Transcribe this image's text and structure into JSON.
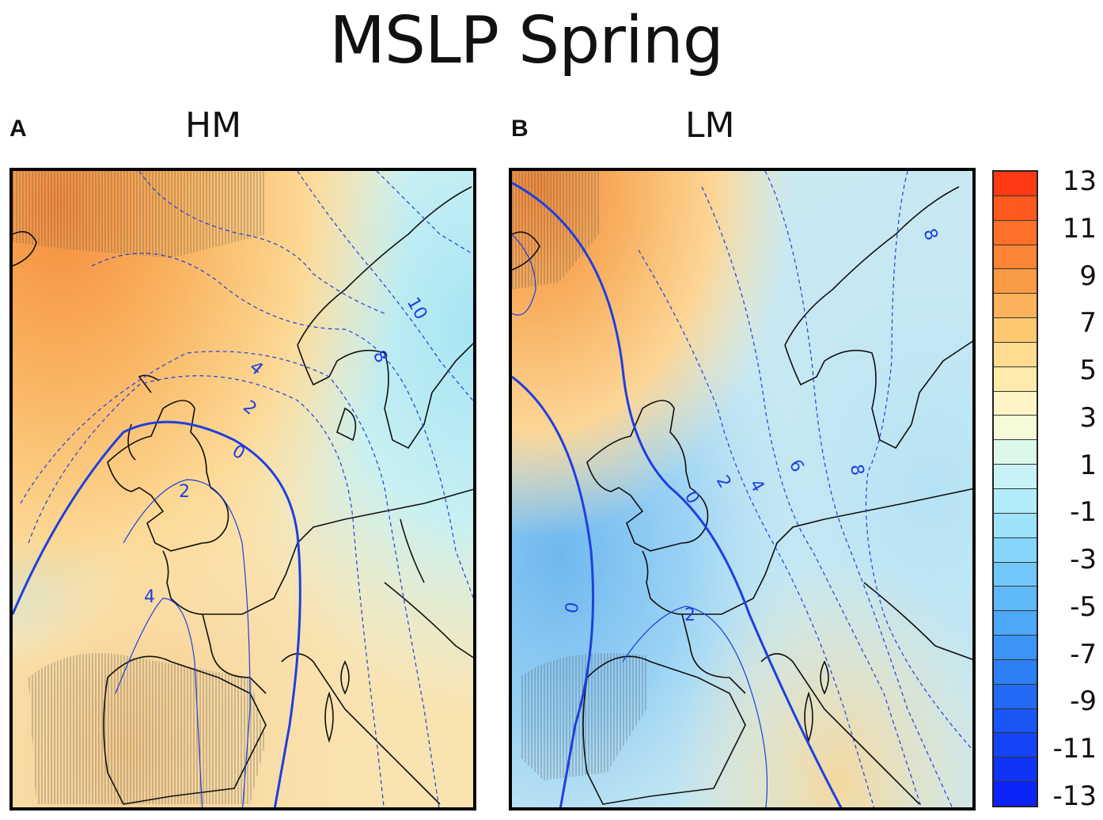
{
  "title": "MSLP Spring",
  "panels": [
    {
      "letter": "A",
      "name": "HM"
    },
    {
      "letter": "B",
      "name": "LM"
    }
  ],
  "contour_labels": {
    "A": [
      "10",
      "8",
      "4",
      "2",
      "0",
      "2",
      "4"
    ],
    "B": [
      "8",
      "6",
      "4",
      "2",
      "0",
      "0",
      "2",
      "8"
    ]
  },
  "colorbar": {
    "labels": [
      "13",
      "11",
      "9",
      "7",
      "5",
      "3",
      "1",
      "-1",
      "-3",
      "-5",
      "-7",
      "-9",
      "-11",
      "-13"
    ],
    "colors": [
      "#ff3a14",
      "#ff5a1e",
      "#ff7028",
      "#fb8436",
      "#f99a44",
      "#fbb25a",
      "#fdc870",
      "#fedb8e",
      "#feeaab",
      "#fff4c6",
      "#f4fbd6",
      "#dcf8ea",
      "#c8f2f6",
      "#b2ecfb",
      "#9de2fb",
      "#86d6fb",
      "#72c8fa",
      "#5fb8f8",
      "#4da8f7",
      "#3c94f6",
      "#2d80f5",
      "#226af5",
      "#1a56f5",
      "#1444f6",
      "#1034f7",
      "#0c24f8"
    ]
  }
}
